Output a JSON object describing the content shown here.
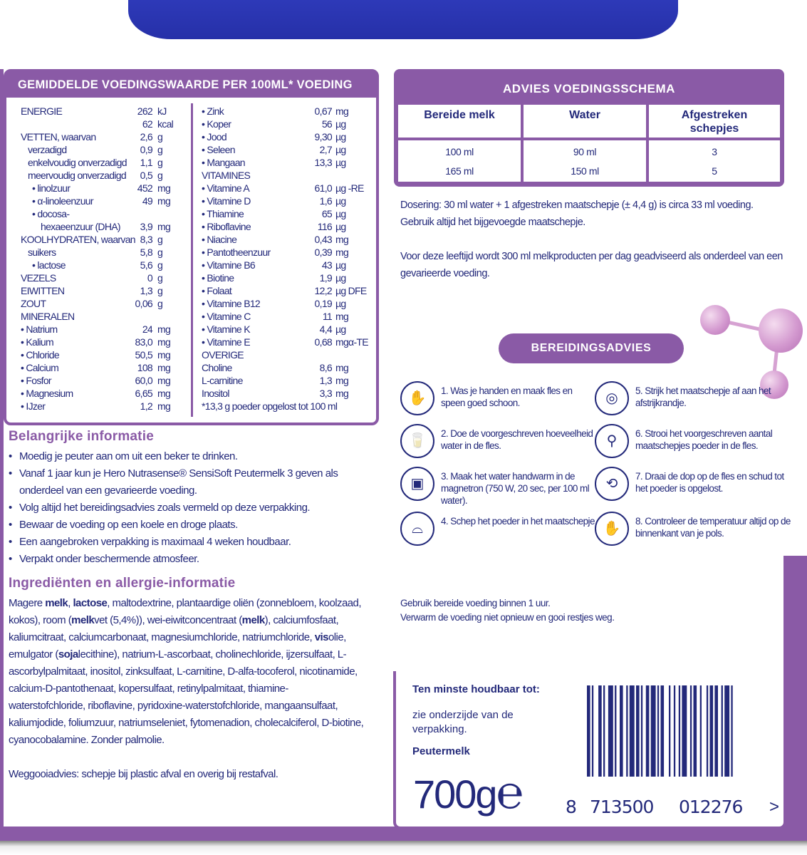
{
  "colors": {
    "brand_purple": "#8a5aa6",
    "text_navy": "#23297a",
    "lid_blue": "#2e39b8"
  },
  "nutrition": {
    "title": "GEMIDDELDE VOEDINGSWAARDE PER 100ML* VOEDING",
    "left": [
      {
        "label": "ENERGIE",
        "value": "262",
        "unit": "kJ",
        "lvl": 0
      },
      {
        "label": "",
        "value": "62",
        "unit": "kcal",
        "lvl": 0
      },
      {
        "label": "VETTEN, waarvan",
        "value": "2,6",
        "unit": "g",
        "lvl": 0
      },
      {
        "label": "verzadigd",
        "value": "0,9",
        "unit": "g",
        "lvl": 1
      },
      {
        "label": "enkelvoudig onverzadigd",
        "value": "1,1",
        "unit": "g",
        "lvl": 1
      },
      {
        "label": "meervoudig onverzadigd",
        "value": "0,5",
        "unit": "g",
        "lvl": 1
      },
      {
        "label": "• linolzuur",
        "value": "452",
        "unit": "mg",
        "lvl": 2
      },
      {
        "label": "• α-linoleenzuur",
        "value": "49",
        "unit": "mg",
        "lvl": 2
      },
      {
        "label": "• docosa-",
        "value": "",
        "unit": "",
        "lvl": 2
      },
      {
        "label": "hexaeenzuur (DHA)",
        "value": "3,9",
        "unit": "mg",
        "lvl": 3
      },
      {
        "label": "KOOLHYDRATEN, waarvan",
        "value": "8,3",
        "unit": "g",
        "lvl": 0
      },
      {
        "label": "suikers",
        "value": "5,8",
        "unit": "g",
        "lvl": 1
      },
      {
        "label": "• lactose",
        "value": "5,6",
        "unit": "g",
        "lvl": 2
      },
      {
        "label": "VEZELS",
        "value": "0",
        "unit": "g",
        "lvl": 0
      },
      {
        "label": "EIWITTEN",
        "value": "1,3",
        "unit": "g",
        "lvl": 0
      },
      {
        "label": "ZOUT",
        "value": "0,06",
        "unit": "g",
        "lvl": 0
      },
      {
        "label": "MINERALEN",
        "value": "",
        "unit": "",
        "lvl": 0
      },
      {
        "label": "•  Natrium",
        "value": "24",
        "unit": "mg",
        "lvl": 0
      },
      {
        "label": "•  Kalium",
        "value": "83,0",
        "unit": "mg",
        "lvl": 0
      },
      {
        "label": "•  Chloride",
        "value": "50,5",
        "unit": "mg",
        "lvl": 0
      },
      {
        "label": "•  Calcium",
        "value": "108",
        "unit": "mg",
        "lvl": 0
      },
      {
        "label": "•  Fosfor",
        "value": "60,0",
        "unit": "mg",
        "lvl": 0
      },
      {
        "label": "•  Magnesium",
        "value": "6,65",
        "unit": "mg",
        "lvl": 0
      },
      {
        "label": "•  IJzer",
        "value": "1,2",
        "unit": "mg",
        "lvl": 0
      }
    ],
    "right": [
      {
        "label": "•  Zink",
        "value": "0,67",
        "unit": "mg"
      },
      {
        "label": "•  Koper",
        "value": "56",
        "unit": "µg"
      },
      {
        "label": "•  Jood",
        "value": "9,30",
        "unit": "µg"
      },
      {
        "label": "•  Seleen",
        "value": "2,7",
        "unit": "µg"
      },
      {
        "label": "•  Mangaan",
        "value": "13,3",
        "unit": "µg"
      },
      {
        "label": "VITAMINES",
        "value": "",
        "unit": ""
      },
      {
        "label": "•  Vitamine A",
        "value": "61,0",
        "unit": "µg -RE"
      },
      {
        "label": "•  Vitamine D",
        "value": "1,6",
        "unit": "µg"
      },
      {
        "label": "•  Thiamine",
        "value": "65",
        "unit": "µg"
      },
      {
        "label": "•  Riboflavine",
        "value": "116",
        "unit": "µg"
      },
      {
        "label": "•  Niacine",
        "value": "0,43",
        "unit": "mg"
      },
      {
        "label": "•  Pantotheenzuur",
        "value": "0,39",
        "unit": "mg"
      },
      {
        "label": "•  Vitamine B6",
        "value": "43",
        "unit": "µg"
      },
      {
        "label": "•  Biotine",
        "value": "1,9",
        "unit": "µg"
      },
      {
        "label": "•  Folaat",
        "value": "12,2",
        "unit": "µg DFE"
      },
      {
        "label": "•  Vitamine B12",
        "value": "0,19",
        "unit": "µg"
      },
      {
        "label": "•  Vitamine C",
        "value": "11",
        "unit": "mg"
      },
      {
        "label": "•  Vitamine K",
        "value": "4,4",
        "unit": "µg"
      },
      {
        "label": "•  Vitamine E",
        "value": "0,68",
        "unit": "mgα-TE"
      },
      {
        "label": "OVERIGE",
        "value": "",
        "unit": ""
      },
      {
        "label": "Choline",
        "value": "8,6",
        "unit": "mg"
      },
      {
        "label": "L-carnitine",
        "value": "1,3",
        "unit": "mg"
      },
      {
        "label": "Inositol",
        "value": "3,3",
        "unit": "mg"
      },
      {
        "label": "*13,3 g poeder opgelost tot 100 ml",
        "value": "",
        "unit": ""
      }
    ]
  },
  "schema": {
    "title": "ADVIES VOEDINGSSCHEMA",
    "headers": [
      "Bereide melk",
      "Water",
      "Afgestreken schepjes"
    ],
    "rows": [
      [
        "100 ml",
        "90 ml",
        "3"
      ],
      [
        "165 ml",
        "150 ml",
        "5"
      ]
    ]
  },
  "dosering": "Dosering: 30 ml water + 1 afgestreken maatschepje (± 4,4 g) is circa 33 ml voeding. Gebruik altijd het bijgevoegde maatschepje.",
  "advies": "Voor deze leeftijd wordt 300 ml melkproducten per dag geadviseerd als onderdeel van een gevarieerde voeding.",
  "bereiding": {
    "title": "BEREIDINGSADVIES",
    "steps": [
      {
        "icon": "hand-wash-icon",
        "text": "1. Was je handen en maak fles en speen goed schoon."
      },
      {
        "icon": "water-bottle-icon",
        "text": "2. Doe de voorgeschreven hoeveelheid water in de fles."
      },
      {
        "icon": "microwave-icon",
        "text": "3. Maak het water handwarm in de magnetron (750 W, 20 sec, per 100 ml water)."
      },
      {
        "icon": "scoop-powder-icon",
        "text": "4. Schep het poeder in het maatschepje."
      },
      {
        "icon": "level-scoop-icon",
        "text": "5. Strijk het maatschepje af aan het afstrijkrandje."
      },
      {
        "icon": "pour-powder-icon",
        "text": "6. Strooi het voorgeschreven aantal maatschepjes poeder in de fles."
      },
      {
        "icon": "shake-bottle-icon",
        "text": "7. Draai de dop op de fles en schud tot het poeder is opgelost."
      },
      {
        "icon": "wrist-test-icon",
        "text": "8. Controleer de temperatuur altijd op de binnenkant van je pols."
      }
    ]
  },
  "gebruik": "Gebruik bereide voeding binnen 1 uur.",
  "verwarm": "Verwarm de voeding niet opnieuw en gooi restjes weg.",
  "belangrijk": {
    "title": "Belangrijke informatie",
    "items": [
      "Moedig je peuter aan om uit een beker te drinken.",
      "Vanaf 1 jaar kun je Hero Nutrasense® SensiSoft Peutermelk 3 geven als onderdeel van een gevarieerde voeding.",
      "Volg altijd het bereidingsadvies zoals vermeld op deze verpakking.",
      "Bewaar de voeding op een koele en droge plaats.",
      "Een aangebroken verpakking is maximaal 4 weken houdbaar.",
      "Verpakt onder beschermende atmosfeer."
    ]
  },
  "ingredienten": {
    "title": "Ingrediënten en allergie-informatie",
    "parts": [
      {
        "t": "Magere "
      },
      {
        "t": "melk",
        "b": true
      },
      {
        "t": ", "
      },
      {
        "t": "lactose",
        "b": true
      },
      {
        "t": ", maltodextrine, plantaardige oliën (zonnebloem, koolzaad, kokos), room ("
      },
      {
        "t": "melk",
        "b": true
      },
      {
        "t": "vet (5,4%)), wei-eiwitconcentraat ("
      },
      {
        "t": "melk",
        "b": true
      },
      {
        "t": "), calciumfosfaat, kaliumcitraat, calciumcarbonaat, magnesiumchloride, natriumchloride, "
      },
      {
        "t": "vis",
        "b": true
      },
      {
        "t": "olie, emulgator ("
      },
      {
        "t": "soja",
        "b": true
      },
      {
        "t": "lecithine), natrium-L-ascorbaat, cholinechloride, ijzersulfaat, L-ascorbylpalmitaat, inositol, zinksulfaat, L-carnitine, D-alfa-tocoferol, nicotinamide, calcium-D-pantothenaat, kopersulfaat, retinylpalmitaat, thiamine-waterstofchloride, riboflavine, pyridoxine-waterstofchloride, mangaansulfaat, kaliumjodide, foliumzuur, natriumseleniet, fytomenadion, cholecalciferol, D-biotine, cyanocobalamine. Zonder palmolie."
      }
    ],
    "weggooi": "Weggooiadvies: schepje bij plastic afval en overig bij restafval."
  },
  "houdbaar": {
    "title": "Ten minste houdbaar tot:",
    "text": "zie onderzijde van de verpakking.",
    "product": "Peutermelk"
  },
  "weight": "700g",
  "estimated_mark": "℮",
  "barcode": {
    "first": "8",
    "group1": "713500",
    "group2": "012276",
    "end": ">"
  }
}
